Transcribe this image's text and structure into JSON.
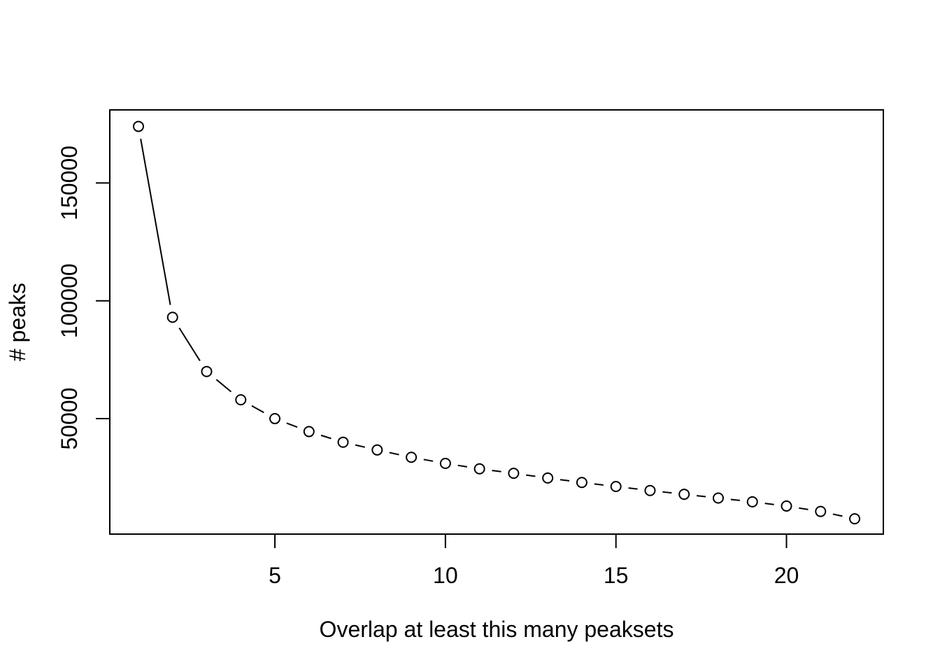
{
  "chart_data": {
    "type": "line",
    "title": "",
    "xlabel": "Overlap at least this many peaksets",
    "ylabel": "# peaks",
    "x": [
      1,
      2,
      3,
      4,
      5,
      6,
      7,
      8,
      9,
      10,
      11,
      12,
      13,
      14,
      15,
      16,
      17,
      18,
      19,
      20,
      21,
      22
    ],
    "series": [
      {
        "values": [
          174000,
          93000,
          70000,
          58000,
          50000,
          44500,
          40000,
          36700,
          33600,
          31000,
          28700,
          26800,
          24800,
          22900,
          21200,
          19500,
          17900,
          16300,
          14700,
          12900,
          10600,
          7500
        ]
      }
    ],
    "x_ticks": [
      5,
      10,
      15,
      20
    ],
    "y_ticks": [
      50000,
      100000,
      150000
    ],
    "x_tick_labels": [
      "5",
      "10",
      "15",
      "20"
    ],
    "y_tick_labels": [
      "50000",
      "100000",
      "150000"
    ],
    "xlim": [
      0.16,
      22.84
    ],
    "ylim": [
      1000,
      181000
    ],
    "grid": false,
    "legend": "none",
    "marker": "open-circle",
    "line_style": "connected-gaps"
  }
}
